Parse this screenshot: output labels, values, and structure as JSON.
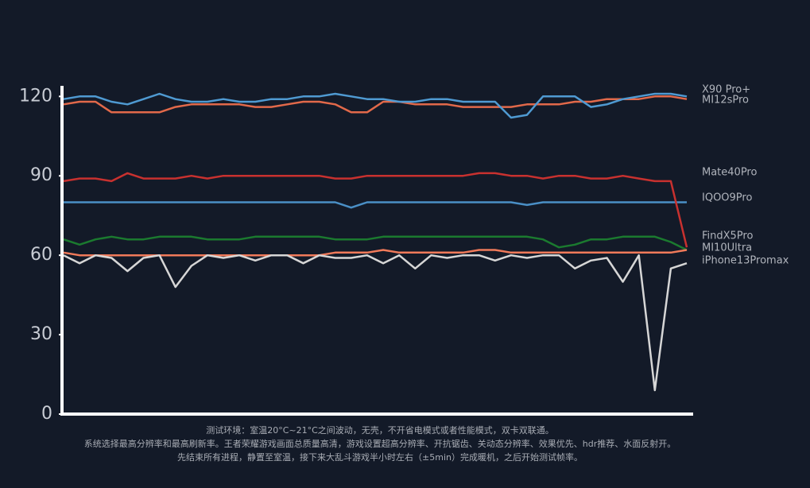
{
  "chart_data": {
    "type": "line",
    "ylim": [
      0,
      124
    ],
    "yticks": [
      0,
      30,
      60,
      90,
      120
    ],
    "series": [
      {
        "name": "X90 Pro+",
        "color": "#4f9ad2",
        "values": [
          119,
          120,
          120,
          118,
          117,
          119,
          121,
          119,
          118,
          118,
          119,
          118,
          118,
          119,
          119,
          120,
          120,
          121,
          120,
          119,
          119,
          118,
          118,
          119,
          119,
          118,
          118,
          118,
          112,
          113,
          120,
          120,
          120,
          116,
          117,
          119,
          120,
          121,
          121,
          120
        ]
      },
      {
        "name": "MI12sPro",
        "color": "#e2694a",
        "values": [
          117,
          118,
          118,
          114,
          114,
          114,
          114,
          116,
          117,
          117,
          117,
          117,
          116,
          116,
          117,
          118,
          118,
          117,
          114,
          114,
          118,
          118,
          117,
          117,
          117,
          116,
          116,
          116,
          116,
          117,
          117,
          117,
          118,
          118,
          119,
          119,
          119,
          120,
          120,
          119
        ]
      },
      {
        "name": "Mate40Pro",
        "color": "#c8312f",
        "values": [
          88,
          89,
          89,
          88,
          91,
          89,
          89,
          89,
          90,
          89,
          90,
          90,
          90,
          90,
          90,
          90,
          90,
          89,
          89,
          90,
          90,
          90,
          90,
          90,
          90,
          90,
          91,
          91,
          90,
          90,
          89,
          90,
          90,
          89,
          89,
          90,
          89,
          88,
          88,
          63
        ]
      },
      {
        "name": "IQOO9Pro",
        "color": "#4a8fc6",
        "values": [
          80,
          80,
          80,
          80,
          80,
          80,
          80,
          80,
          80,
          80,
          80,
          80,
          80,
          80,
          80,
          80,
          80,
          80,
          78,
          80,
          80,
          80,
          80,
          80,
          80,
          80,
          80,
          80,
          80,
          79,
          80,
          80,
          80,
          80,
          80,
          80,
          80,
          80,
          80,
          80
        ]
      },
      {
        "name": "FindX5Pro",
        "color": "#1b7a2f",
        "values": [
          66,
          64,
          66,
          67,
          66,
          66,
          67,
          67,
          67,
          66,
          66,
          66,
          67,
          67,
          67,
          67,
          67,
          66,
          66,
          66,
          67,
          67,
          67,
          67,
          67,
          67,
          67,
          67,
          67,
          67,
          66,
          63,
          64,
          66,
          66,
          67,
          67,
          67,
          65,
          62
        ]
      },
      {
        "name": "MI10Ultra",
        "color": "#f07a5a",
        "values": [
          61,
          60,
          60,
          60,
          60,
          60,
          60,
          60,
          60,
          60,
          60,
          60,
          60,
          60,
          60,
          60,
          60,
          61,
          61,
          61,
          62,
          61,
          61,
          61,
          61,
          61,
          62,
          62,
          61,
          61,
          61,
          61,
          61,
          61,
          61,
          61,
          61,
          61,
          61,
          62
        ]
      },
      {
        "name": "iPhone13Promax",
        "color": "#d6d6d6",
        "values": [
          60,
          57,
          60,
          59,
          54,
          59,
          60,
          48,
          56,
          60,
          59,
          60,
          58,
          60,
          60,
          57,
          60,
          59,
          59,
          60,
          57,
          60,
          55,
          60,
          59,
          60,
          60,
          58,
          60,
          59,
          60,
          60,
          55,
          58,
          59,
          50,
          60,
          9,
          55,
          57
        ]
      }
    ],
    "notes": [
      "测试环境：室温20°C~21°C之间波动，无壳，不开省电模式或者性能模式，双卡双联通。",
      "系统选择最高分辨率和最高刷新率。王者荣耀游戏画面总质量高清，游戏设置超高分辨率、开抗锯齿、关动态分辨率、效果优先、hdr推荐、水面反射开。",
      "先结束所有进程，静置至室温，接下来大乱斗游戏半小时左右（±5min）完成暖机，之后开始测试帧率。"
    ]
  }
}
